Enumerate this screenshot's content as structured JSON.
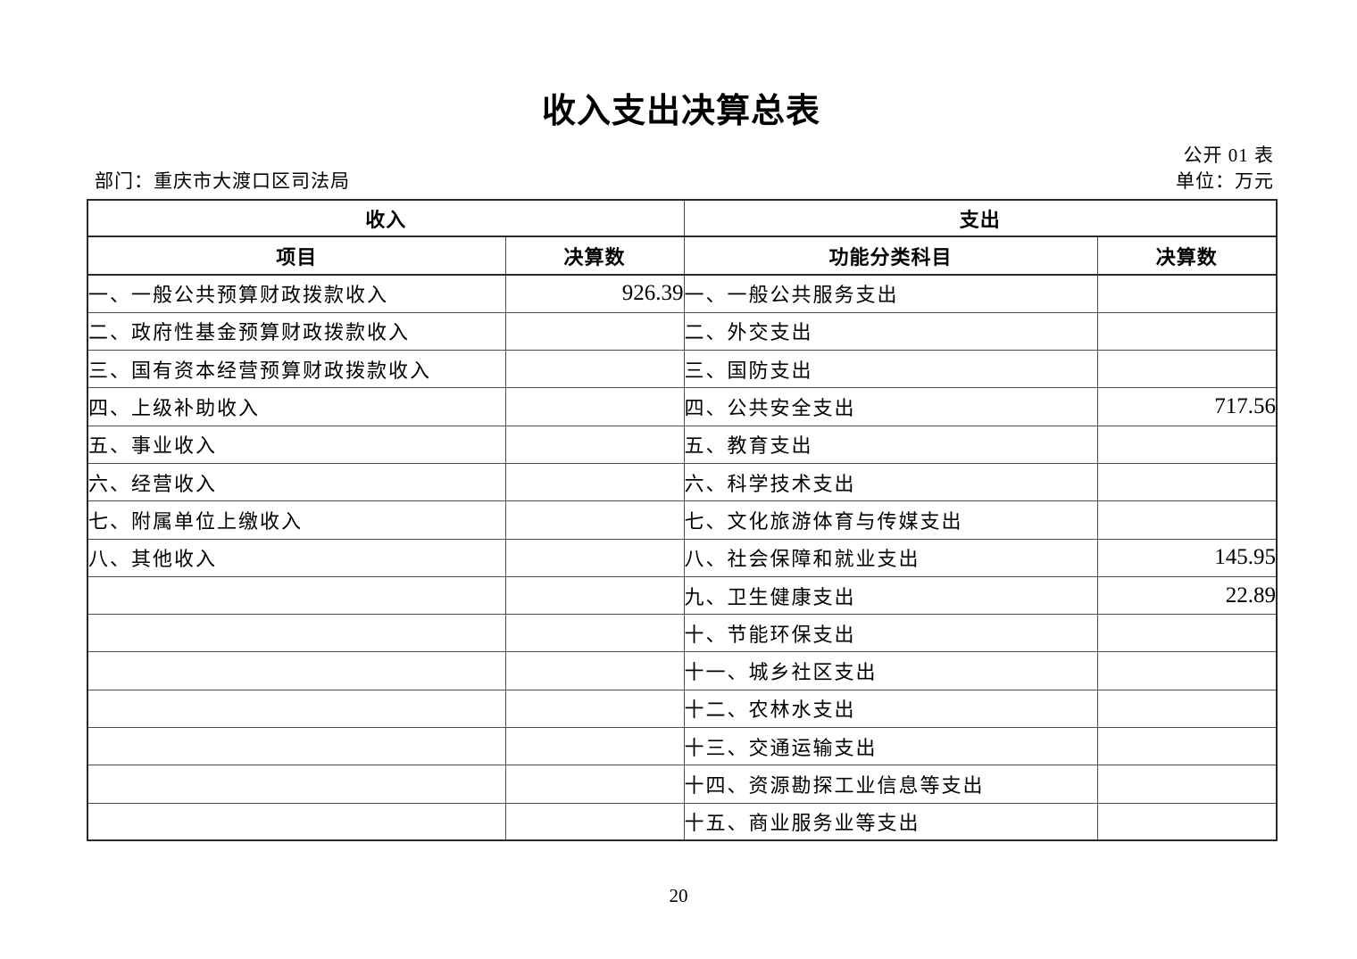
{
  "page": {
    "title": "收入支出决算总表",
    "table_code": "公开 01 表",
    "department_label": "部门：重庆市大渡口区司法局",
    "unit_label": "单位：万元",
    "page_number": "20"
  },
  "table": {
    "income_header": "收入",
    "expense_header": "支出",
    "columns": {
      "income_item": "项目",
      "income_amount": "决算数",
      "expense_item": "功能分类科目",
      "expense_amount": "决算数"
    },
    "rows": [
      {
        "income_item": "一、一般公共预算财政拨款收入",
        "income_amount": "926.39",
        "expense_item": "一、一般公共服务支出",
        "expense_amount": ""
      },
      {
        "income_item": "二、政府性基金预算财政拨款收入",
        "income_amount": "",
        "expense_item": "二、外交支出",
        "expense_amount": ""
      },
      {
        "income_item": "三、国有资本经营预算财政拨款收入",
        "income_amount": "",
        "expense_item": "三、国防支出",
        "expense_amount": ""
      },
      {
        "income_item": "四、上级补助收入",
        "income_amount": "",
        "expense_item": "四、公共安全支出",
        "expense_amount": "717.56"
      },
      {
        "income_item": "五、事业收入",
        "income_amount": "",
        "expense_item": "五、教育支出",
        "expense_amount": ""
      },
      {
        "income_item": "六、经营收入",
        "income_amount": "",
        "expense_item": "六、科学技术支出",
        "expense_amount": ""
      },
      {
        "income_item": "七、附属单位上缴收入",
        "income_amount": "",
        "expense_item": "七、文化旅游体育与传媒支出",
        "expense_amount": ""
      },
      {
        "income_item": "八、其他收入",
        "income_amount": "",
        "expense_item": "八、社会保障和就业支出",
        "expense_amount": "145.95"
      },
      {
        "income_item": "",
        "income_amount": "",
        "expense_item": "九、卫生健康支出",
        "expense_amount": "22.89"
      },
      {
        "income_item": "",
        "income_amount": "",
        "expense_item": "十、节能环保支出",
        "expense_amount": ""
      },
      {
        "income_item": "",
        "income_amount": "",
        "expense_item": "十一、城乡社区支出",
        "expense_amount": ""
      },
      {
        "income_item": "",
        "income_amount": "",
        "expense_item": "十二、农林水支出",
        "expense_amount": ""
      },
      {
        "income_item": "",
        "income_amount": "",
        "expense_item": "十三、交通运输支出",
        "expense_amount": ""
      },
      {
        "income_item": "",
        "income_amount": "",
        "expense_item": "十四、资源勘探工业信息等支出",
        "expense_amount": ""
      },
      {
        "income_item": "",
        "income_amount": "",
        "expense_item": "十五、商业服务业等支出",
        "expense_amount": ""
      }
    ]
  }
}
